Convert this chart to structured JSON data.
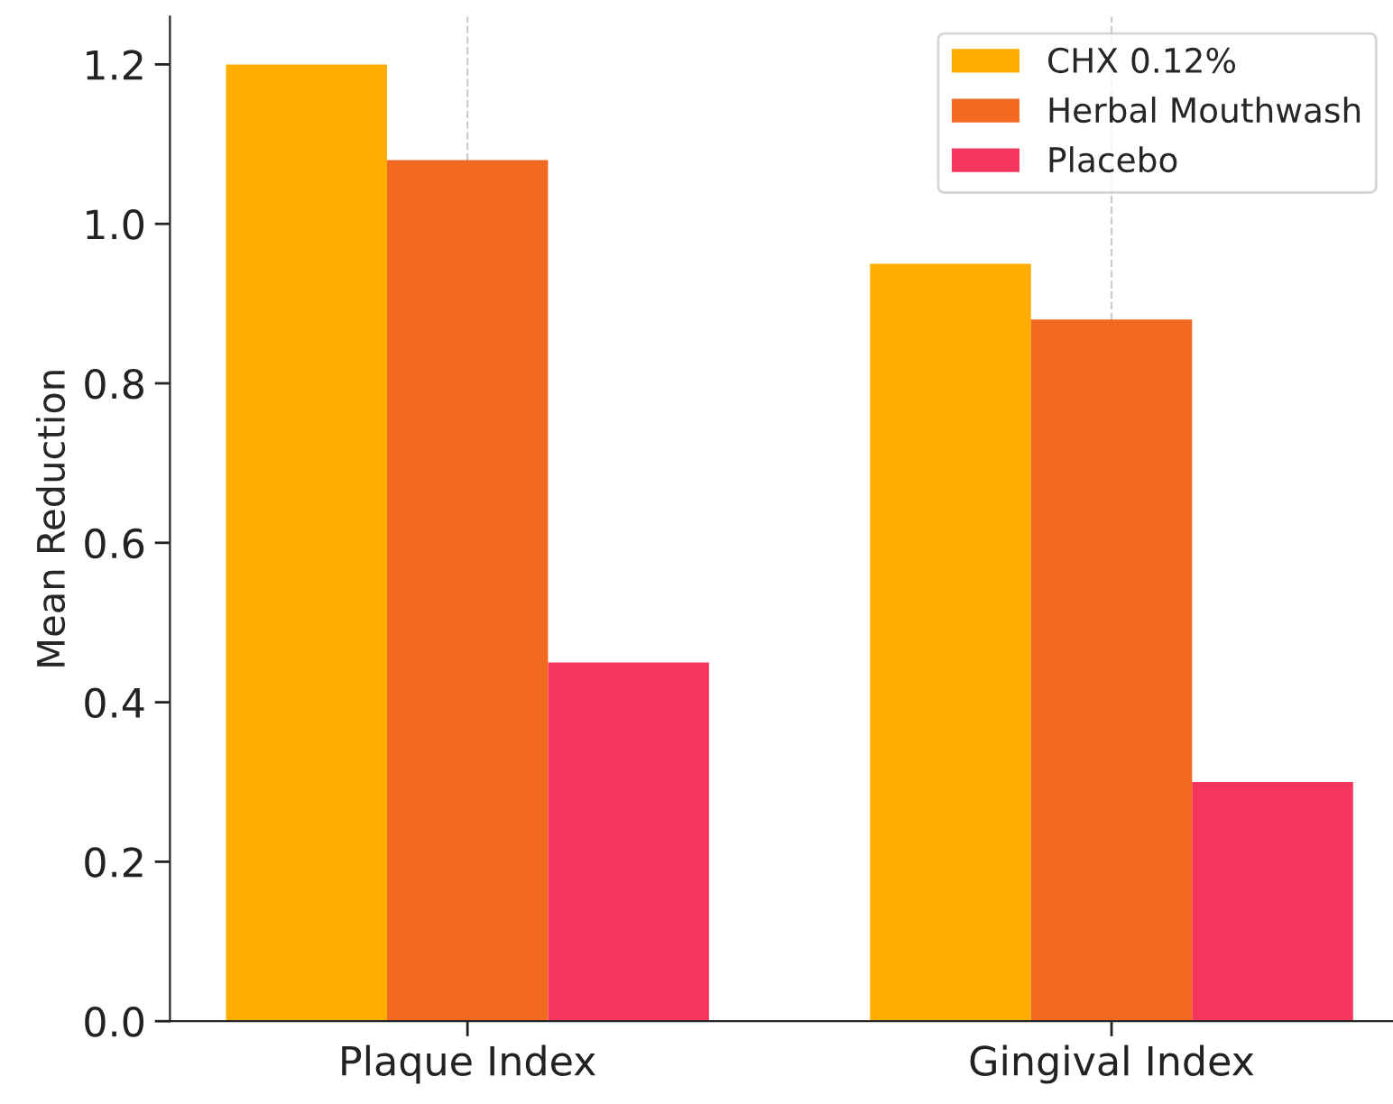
{
  "chart_data": {
    "type": "bar",
    "ylabel": "Mean Reduction",
    "categories": [
      "Plaque Index",
      "Gingival Index"
    ],
    "series": [
      {
        "name": "CHX 0.12%",
        "color": "#ffae00",
        "values": [
          1.2,
          0.95
        ]
      },
      {
        "name": "Herbal Mouthwash",
        "color": "#f26a22",
        "values": [
          1.08,
          0.88
        ]
      },
      {
        "name": "Placebo",
        "color": "#f5365c",
        "values": [
          0.45,
          0.3
        ]
      }
    ],
    "ylim": [
      0,
      1.26
    ],
    "yticks": [
      {
        "value": 0,
        "label": "0.0"
      },
      0.2,
      0.4,
      0.6,
      0.8,
      {
        "value": 1,
        "label": "1.0"
      },
      1.2
    ],
    "grid": "x",
    "legend": "top right"
  }
}
